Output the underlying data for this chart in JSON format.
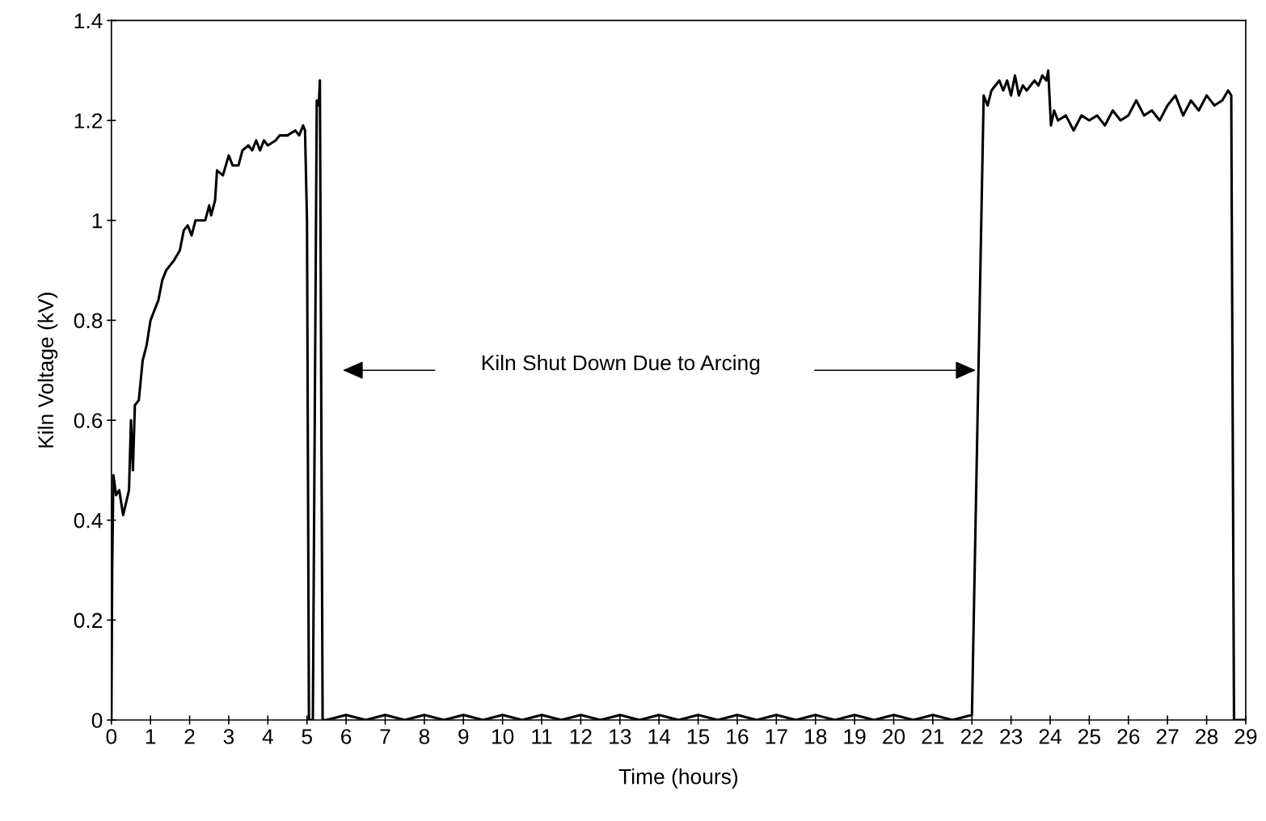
{
  "chart_data": {
    "type": "line",
    "xlabel": "Time (hours)",
    "ylabel": "Kiln Voltage (kV)",
    "annotations": [
      "Kiln Shut Down Due to Arcing"
    ],
    "xlim": [
      0,
      29
    ],
    "xticks": [
      0,
      1,
      2,
      3,
      4,
      5,
      6,
      7,
      8,
      9,
      10,
      11,
      12,
      13,
      14,
      15,
      16,
      17,
      18,
      19,
      20,
      21,
      22,
      23,
      24,
      25,
      26,
      27,
      28,
      29
    ],
    "ylim": [
      0,
      1.4
    ],
    "yticks": [
      0,
      0.2,
      0.4,
      0.6,
      0.8,
      1,
      1.2,
      1.4
    ],
    "grid": false,
    "legend": false,
    "marker": "none",
    "line_style": "solid",
    "series": [
      {
        "color": "#000000",
        "x": [
          0,
          0.02,
          0.05,
          0.12,
          0.2,
          0.3,
          0.45,
          0.5,
          0.55,
          0.6,
          0.7,
          0.8,
          0.9,
          1.0,
          1.1,
          1.2,
          1.3,
          1.4,
          1.5,
          1.6,
          1.75,
          1.85,
          1.95,
          2.05,
          2.15,
          2.3,
          2.4,
          2.5,
          2.55,
          2.65,
          2.7,
          2.85,
          3.0,
          3.1,
          3.25,
          3.35,
          3.5,
          3.6,
          3.7,
          3.8,
          3.9,
          4.0,
          4.2,
          4.3,
          4.5,
          4.7,
          4.8,
          4.9,
          4.95,
          5.0,
          5.05,
          5.15,
          5.25,
          5.3,
          5.33,
          5.4,
          5.5,
          6.0,
          6.5,
          7.0,
          7.5,
          8.0,
          8.5,
          9.0,
          9.5,
          10.0,
          10.5,
          11.0,
          11.5,
          12.0,
          12.5,
          13.0,
          13.5,
          14.0,
          14.5,
          15.0,
          15.5,
          16.0,
          16.5,
          17.0,
          17.5,
          18.0,
          18.5,
          19.0,
          19.5,
          20.0,
          20.5,
          21.0,
          21.5,
          22.0,
          22.3,
          22.4,
          22.5,
          22.6,
          22.7,
          22.8,
          22.9,
          23.0,
          23.1,
          23.2,
          23.3,
          23.4,
          23.5,
          23.6,
          23.7,
          23.8,
          23.9,
          23.95,
          24.02,
          24.1,
          24.2,
          24.4,
          24.6,
          24.8,
          25.0,
          25.2,
          25.4,
          25.6,
          25.8,
          26.0,
          26.2,
          26.4,
          26.6,
          26.8,
          27.0,
          27.2,
          27.4,
          27.6,
          27.8,
          28.0,
          28.2,
          28.4,
          28.55,
          28.63,
          28.7,
          29.0
        ],
        "values": [
          0,
          0.3,
          0.49,
          0.45,
          0.46,
          0.41,
          0.46,
          0.6,
          0.5,
          0.63,
          0.64,
          0.72,
          0.75,
          0.8,
          0.82,
          0.84,
          0.88,
          0.9,
          0.91,
          0.92,
          0.94,
          0.98,
          0.99,
          0.97,
          1.0,
          1.0,
          1.0,
          1.03,
          1.01,
          1.04,
          1.1,
          1.09,
          1.13,
          1.11,
          1.11,
          1.14,
          1.15,
          1.14,
          1.16,
          1.14,
          1.16,
          1.15,
          1.16,
          1.17,
          1.17,
          1.18,
          1.17,
          1.19,
          1.18,
          1.0,
          0,
          0,
          1.24,
          1.23,
          1.28,
          0,
          0,
          0.01,
          0,
          0.01,
          0,
          0.01,
          0,
          0.01,
          0,
          0.01,
          0,
          0.01,
          0,
          0.01,
          0,
          0.01,
          0,
          0.01,
          0,
          0.01,
          0,
          0.01,
          0,
          0.01,
          0,
          0.01,
          0,
          0.01,
          0,
          0.01,
          0,
          0.01,
          0,
          0.01,
          1.25,
          1.23,
          1.26,
          1.27,
          1.28,
          1.26,
          1.28,
          1.25,
          1.29,
          1.25,
          1.27,
          1.26,
          1.27,
          1.28,
          1.27,
          1.29,
          1.28,
          1.3,
          1.19,
          1.22,
          1.2,
          1.21,
          1.18,
          1.21,
          1.2,
          1.21,
          1.19,
          1.22,
          1.2,
          1.21,
          1.24,
          1.21,
          1.22,
          1.2,
          1.23,
          1.25,
          1.21,
          1.24,
          1.22,
          1.25,
          1.23,
          1.24,
          1.26,
          1.25,
          0,
          0
        ]
      }
    ]
  }
}
